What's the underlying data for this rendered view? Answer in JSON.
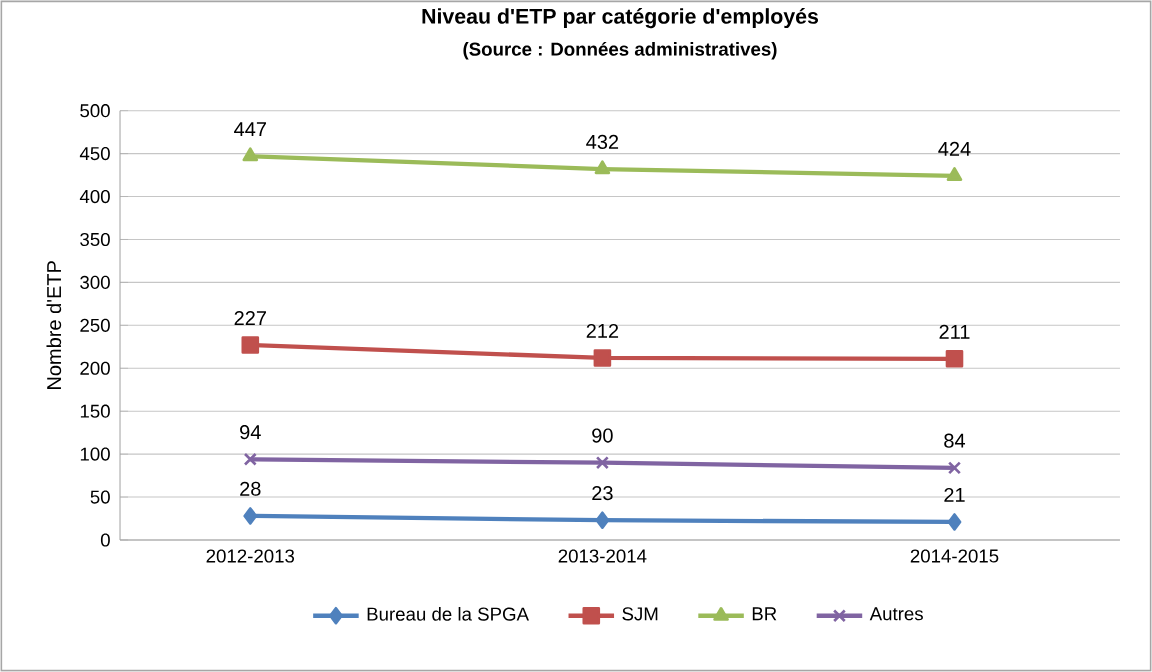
{
  "chart_data": {
    "type": "line",
    "title": "Niveau d'ETP par catégorie d'employés",
    "subtitle": "(Source : Données administratives)",
    "ylabel": "Nombre d'ETP",
    "categories": [
      "2012-2013",
      "2013-2014",
      "2014-2015"
    ],
    "series": [
      {
        "name": "Bureau de la SPGA",
        "color": "#4f81bd",
        "marker": "diamond",
        "values": [
          28,
          23,
          21
        ]
      },
      {
        "name": "SJM",
        "color": "#c0504d",
        "marker": "square",
        "values": [
          227,
          212,
          211
        ]
      },
      {
        "name": "BR",
        "color": "#9bbb59",
        "marker": "triangle",
        "values": [
          447,
          432,
          424
        ]
      },
      {
        "name": "Autres",
        "color": "#8064a2",
        "marker": "cross",
        "values": [
          94,
          90,
          84
        ]
      }
    ],
    "ylim": [
      0,
      500
    ],
    "yticks": [
      0,
      50,
      100,
      150,
      200,
      250,
      300,
      350,
      400,
      450,
      500
    ],
    "grid": "y",
    "legend": "bottom",
    "data_labels": true,
    "line_style": "solid"
  }
}
